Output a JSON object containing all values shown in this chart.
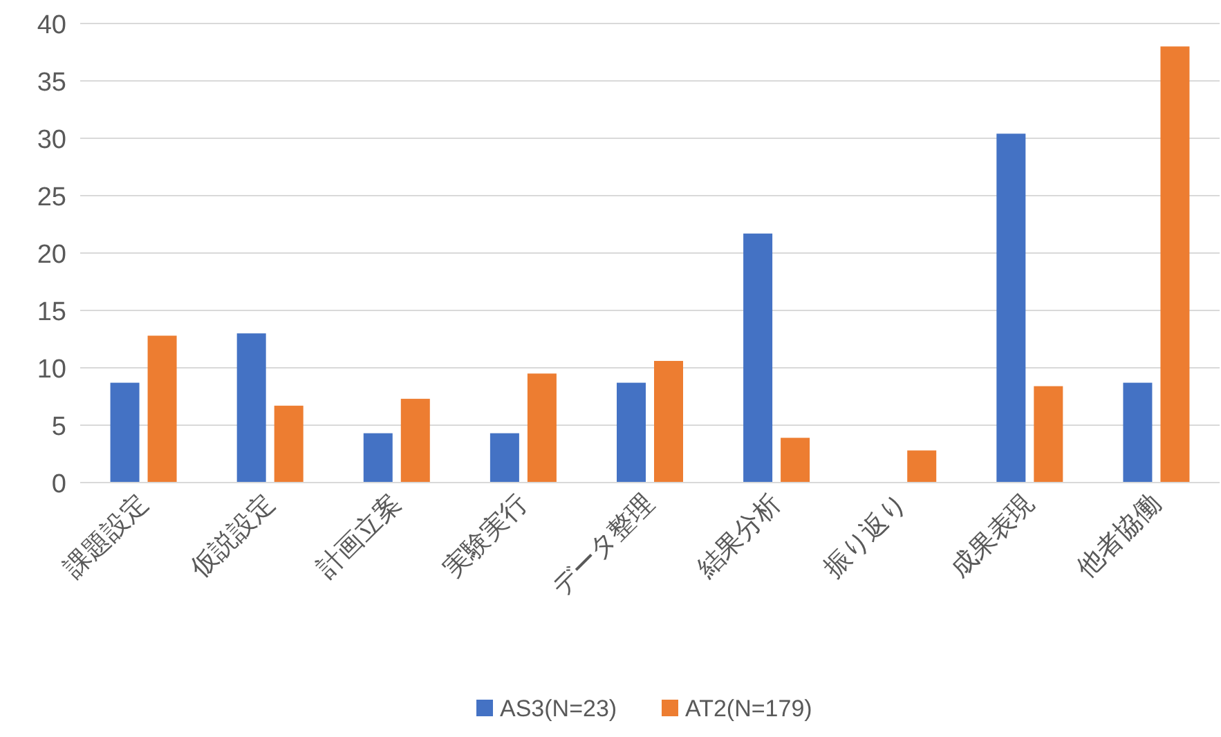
{
  "chart_data": {
    "type": "bar",
    "categories": [
      "課題設定",
      "仮説設定",
      "計画立案",
      "実験実行",
      "データ整理",
      "結果分析",
      "振り返り",
      "成果表現",
      "他者協働"
    ],
    "series": [
      {
        "name": "AS3(N=23)",
        "color": "#4472c4",
        "values": [
          8.7,
          13.0,
          4.3,
          4.3,
          8.7,
          21.7,
          0,
          30.4,
          8.7
        ]
      },
      {
        "name": "AT2(N=179)",
        "color": "#ed7d31",
        "values": [
          12.8,
          6.7,
          7.3,
          9.5,
          10.6,
          3.9,
          2.8,
          8.4,
          38.0
        ]
      }
    ],
    "ylim": [
      0,
      40
    ],
    "yticks": [
      0,
      5,
      10,
      15,
      20,
      25,
      30,
      35,
      40
    ],
    "grid": "y",
    "legend": "bottom"
  }
}
